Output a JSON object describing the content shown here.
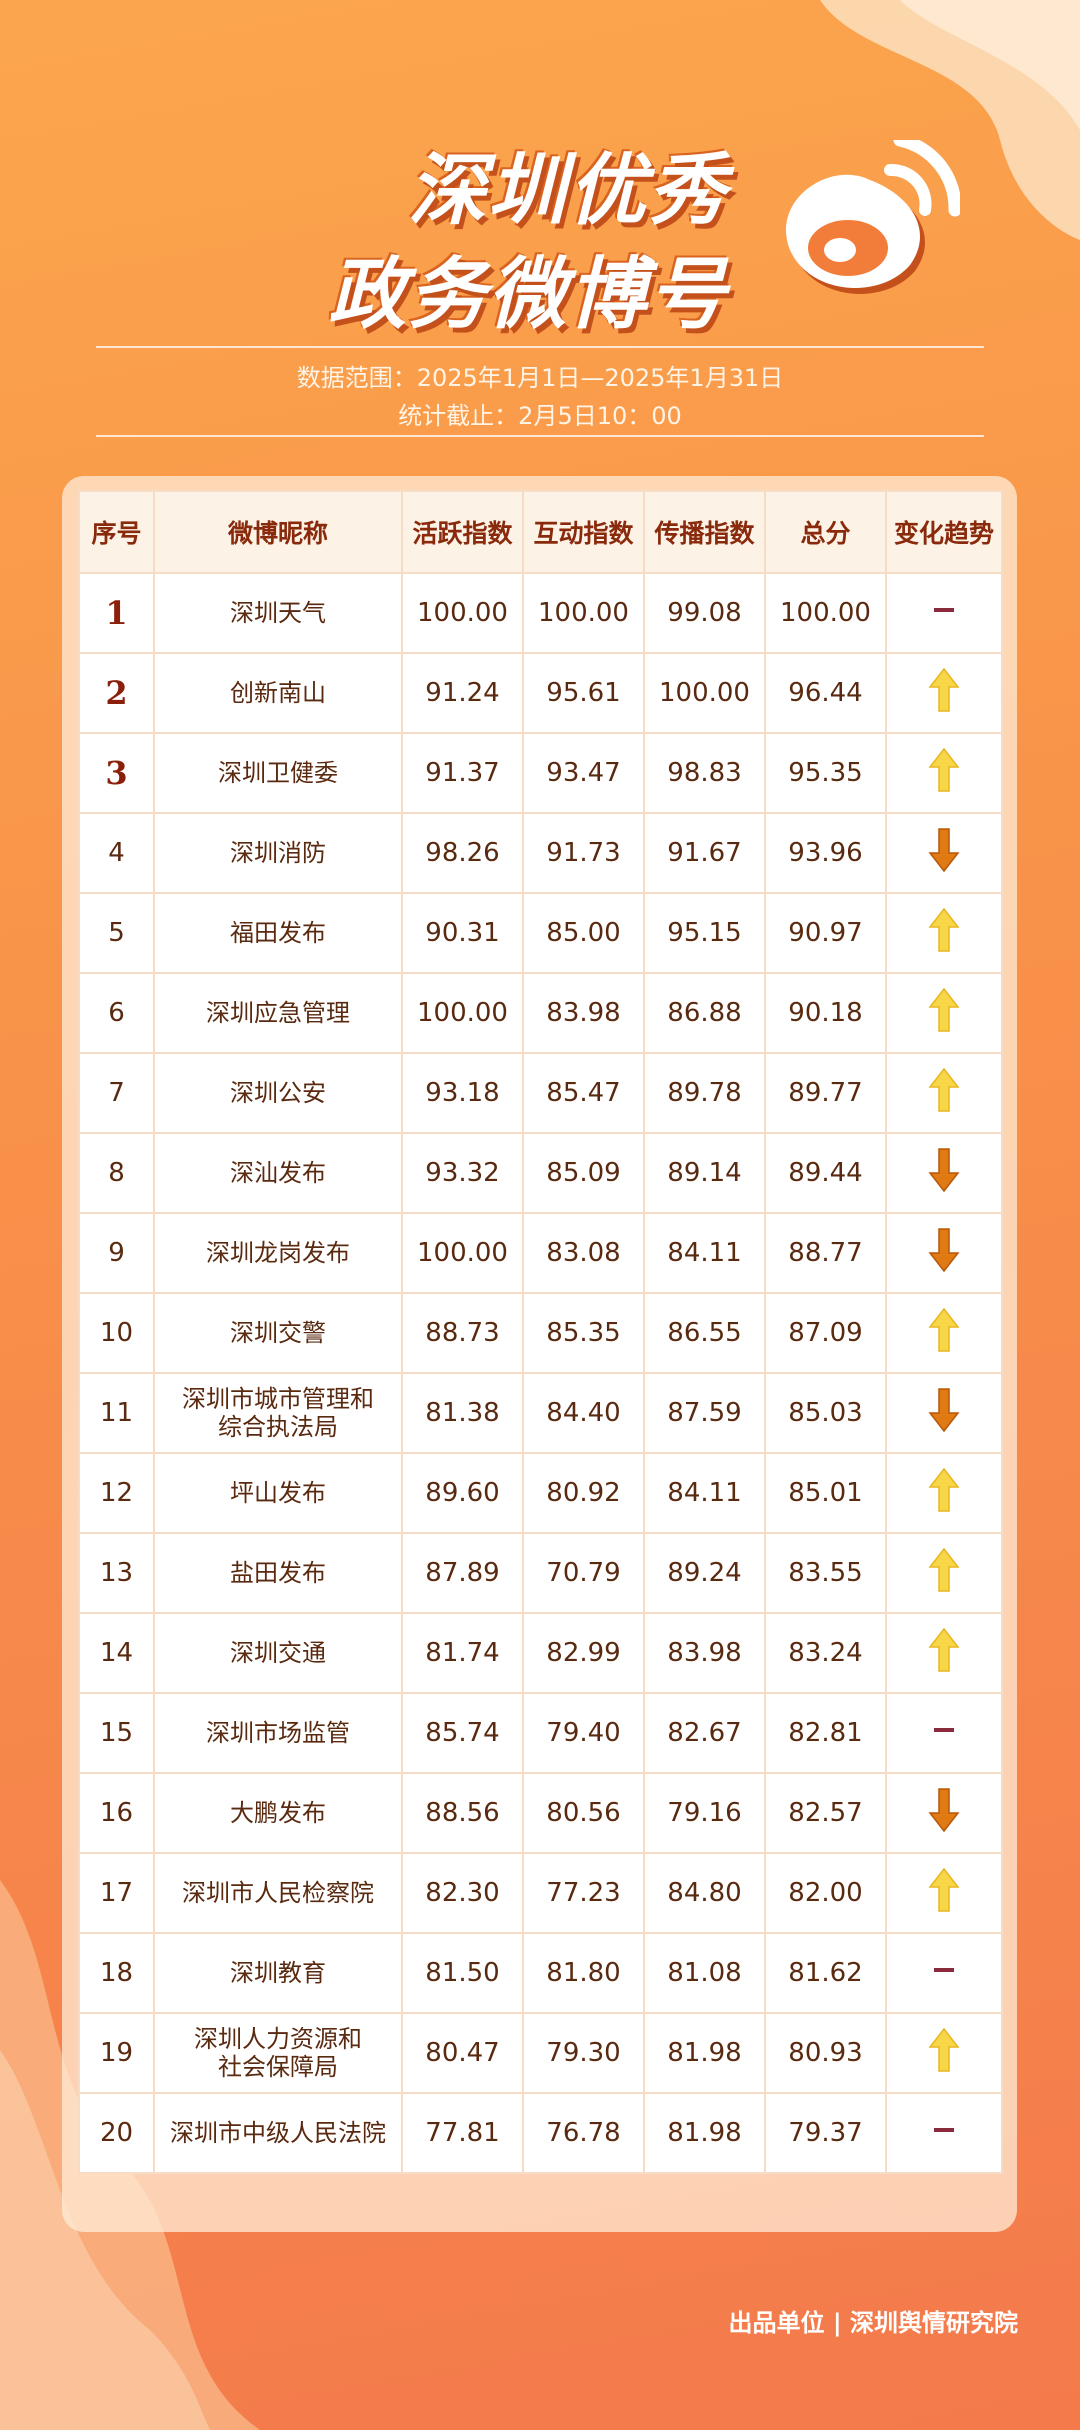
{
  "header": {
    "title_lines": [
      "深圳优秀",
      "政务微博号"
    ],
    "date_range": "数据范围：2025年1月1日—2025年1月31日",
    "cutoff": "统计截止：2月5日10：00"
  },
  "table": {
    "headers": [
      "序号",
      "微博昵称",
      "活跃指数",
      "互动指数",
      "传播指数",
      "总分",
      "变化趋势"
    ],
    "rows": [
      {
        "cells": [
          "1",
          "深圳天气",
          "100.00",
          "100.00",
          "99.08",
          "100.00"
        ],
        "trend": "flat"
      },
      {
        "cells": [
          "2",
          "创新南山",
          "91.24",
          "95.61",
          "100.00",
          "96.44"
        ],
        "trend": "up"
      },
      {
        "cells": [
          "3",
          "深圳卫健委",
          "91.37",
          "93.47",
          "98.83",
          "95.35"
        ],
        "trend": "up"
      },
      {
        "cells": [
          "4",
          "深圳消防",
          "98.26",
          "91.73",
          "91.67",
          "93.96"
        ],
        "trend": "down"
      },
      {
        "cells": [
          "5",
          "福田发布",
          "90.31",
          "85.00",
          "95.15",
          "90.97"
        ],
        "trend": "up"
      },
      {
        "cells": [
          "6",
          "深圳应急管理",
          "100.00",
          "83.98",
          "86.88",
          "90.18"
        ],
        "trend": "up"
      },
      {
        "cells": [
          "7",
          "深圳公安",
          "93.18",
          "85.47",
          "89.78",
          "89.77"
        ],
        "trend": "up"
      },
      {
        "cells": [
          "8",
          "深汕发布",
          "93.32",
          "85.09",
          "89.14",
          "89.44"
        ],
        "trend": "down"
      },
      {
        "cells": [
          "9",
          "深圳龙岗发布",
          "100.00",
          "83.08",
          "84.11",
          "88.77"
        ],
        "trend": "down"
      },
      {
        "cells": [
          "10",
          "深圳交警",
          "88.73",
          "85.35",
          "86.55",
          "87.09"
        ],
        "trend": "up"
      },
      {
        "cells": [
          "11",
          "深圳市城市管理和\n综合执法局",
          "81.38",
          "84.40",
          "87.59",
          "85.03"
        ],
        "trend": "down"
      },
      {
        "cells": [
          "12",
          "坪山发布",
          "89.60",
          "80.92",
          "84.11",
          "85.01"
        ],
        "trend": "up"
      },
      {
        "cells": [
          "13",
          "盐田发布",
          "87.89",
          "70.79",
          "89.24",
          "83.55"
        ],
        "trend": "up"
      },
      {
        "cells": [
          "14",
          "深圳交通",
          "81.74",
          "82.99",
          "83.98",
          "83.24"
        ],
        "trend": "up"
      },
      {
        "cells": [
          "15",
          "深圳市场监管",
          "85.74",
          "79.40",
          "82.67",
          "82.81"
        ],
        "trend": "flat"
      },
      {
        "cells": [
          "16",
          "大鹏发布",
          "88.56",
          "80.56",
          "79.16",
          "82.57"
        ],
        "trend": "down"
      },
      {
        "cells": [
          "17",
          "深圳市人民检察院",
          "82.30",
          "77.23",
          "84.80",
          "82.00"
        ],
        "trend": "up"
      },
      {
        "cells": [
          "18",
          "深圳教育",
          "81.50",
          "81.80",
          "81.08",
          "81.62"
        ],
        "trend": "flat"
      },
      {
        "cells": [
          "19",
          "深圳人力资源和\n社会保障局",
          "80.47",
          "79.30",
          "81.98",
          "80.93"
        ],
        "trend": "up"
      },
      {
        "cells": [
          "20",
          "深圳市中级人民法院",
          "77.81",
          "76.78",
          "81.98",
          "79.37"
        ],
        "trend": "flat"
      }
    ]
  },
  "footer": {
    "text": "出品单位 | 深圳舆情研究院"
  }
}
